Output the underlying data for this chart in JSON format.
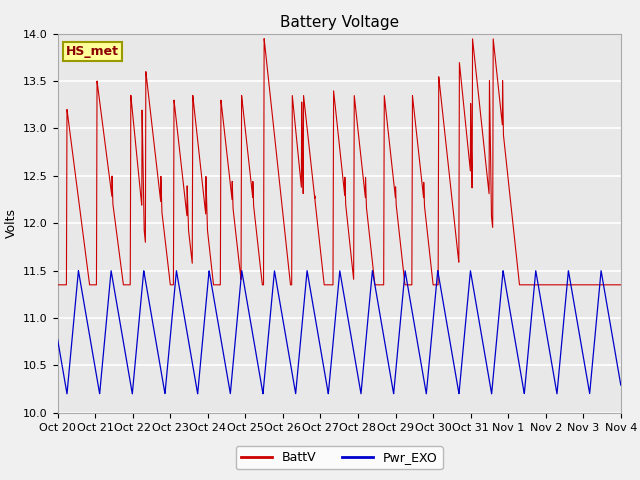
{
  "title": "Battery Voltage",
  "ylabel": "Volts",
  "ylim": [
    10.0,
    14.0
  ],
  "yticks": [
    10.0,
    10.5,
    11.0,
    11.5,
    12.0,
    12.5,
    13.0,
    13.5,
    14.0
  ],
  "xtick_labels": [
    "Oct 20",
    "Oct 21",
    "Oct 22",
    "Oct 23",
    "Oct 24",
    "Oct 25",
    "Oct 26",
    "Oct 27",
    "Oct 28",
    "Oct 29",
    "Oct 30",
    "Oct 31",
    "Nov 1",
    "Nov 2",
    "Nov 3",
    "Nov 4"
  ],
  "battv_color": "#cc0000",
  "pwr_exo_color": "#0000cc",
  "legend_battv": "BattV",
  "legend_pwr": "Pwr_EXO",
  "station_label": "HS_met",
  "station_label_color": "#8B0000",
  "station_box_facecolor": "#FFFF99",
  "station_box_edgecolor": "#999900",
  "background_color": "#e8e8e8",
  "grid_color": "#ffffff",
  "title_fontsize": 11,
  "axis_label_fontsize": 9,
  "tick_fontsize": 8,
  "battv_spikes": [
    {
      "t": 0.25,
      "peak": 13.2,
      "drop_time": 0.6,
      "blip_t": 0.55,
      "blip_v": 12.0
    },
    {
      "t": 1.05,
      "peak": 13.5,
      "drop_time": 0.7,
      "blip_t": 1.45,
      "blip_v": 12.5
    },
    {
      "t": 1.95,
      "peak": 13.35,
      "drop_time": 0.5,
      "blip_t": 2.25,
      "blip_v": 13.2
    },
    {
      "t": 2.35,
      "peak": 13.6,
      "drop_time": 0.65,
      "blip_t": 2.75,
      "blip_v": 12.5
    },
    {
      "t": 3.1,
      "peak": 13.3,
      "drop_time": 0.55,
      "blip_t": 3.45,
      "blip_v": 12.4
    },
    {
      "t": 3.6,
      "peak": 13.35,
      "drop_time": 0.55,
      "blip_t": 3.95,
      "blip_v": 12.5
    },
    {
      "t": 4.35,
      "peak": 13.3,
      "drop_time": 0.55,
      "blip_t": 4.65,
      "blip_v": 12.45
    },
    {
      "t": 4.9,
      "peak": 13.35,
      "drop_time": 0.55,
      "blip_t": 5.2,
      "blip_v": 12.45
    },
    {
      "t": 5.5,
      "peak": 13.95,
      "drop_time": 0.7,
      "blip_t": 5.8,
      "blip_v": 12.4
    },
    {
      "t": 6.25,
      "peak": 13.35,
      "drop_time": 0.5,
      "blip_t": 6.5,
      "blip_v": 13.3
    },
    {
      "t": 6.55,
      "peak": 13.35,
      "drop_time": 0.55,
      "blip_t": 6.85,
      "blip_v": 12.3
    },
    {
      "t": 7.35,
      "peak": 13.4,
      "drop_time": 0.55,
      "blip_t": 7.65,
      "blip_v": 12.5
    },
    {
      "t": 7.9,
      "peak": 13.35,
      "drop_time": 0.55,
      "blip_t": 8.2,
      "blip_v": 12.5
    },
    {
      "t": 8.7,
      "peak": 13.35,
      "drop_time": 0.55,
      "blip_t": 9.0,
      "blip_v": 12.4
    },
    {
      "t": 9.45,
      "peak": 13.35,
      "drop_time": 0.55,
      "blip_t": 9.75,
      "blip_v": 12.45
    },
    {
      "t": 10.15,
      "peak": 13.55,
      "drop_time": 0.6,
      "blip_t": 10.45,
      "blip_v": 12.45
    },
    {
      "t": 10.7,
      "peak": 13.7,
      "drop_time": 0.6,
      "blip_t": 11.0,
      "blip_v": 13.3
    },
    {
      "t": 11.05,
      "peak": 13.95,
      "drop_time": 0.7,
      "blip_t": 11.5,
      "blip_v": 13.55
    },
    {
      "t": 11.6,
      "peak": 13.95,
      "drop_time": 0.7,
      "blip_t": 11.85,
      "blip_v": 13.55
    }
  ]
}
